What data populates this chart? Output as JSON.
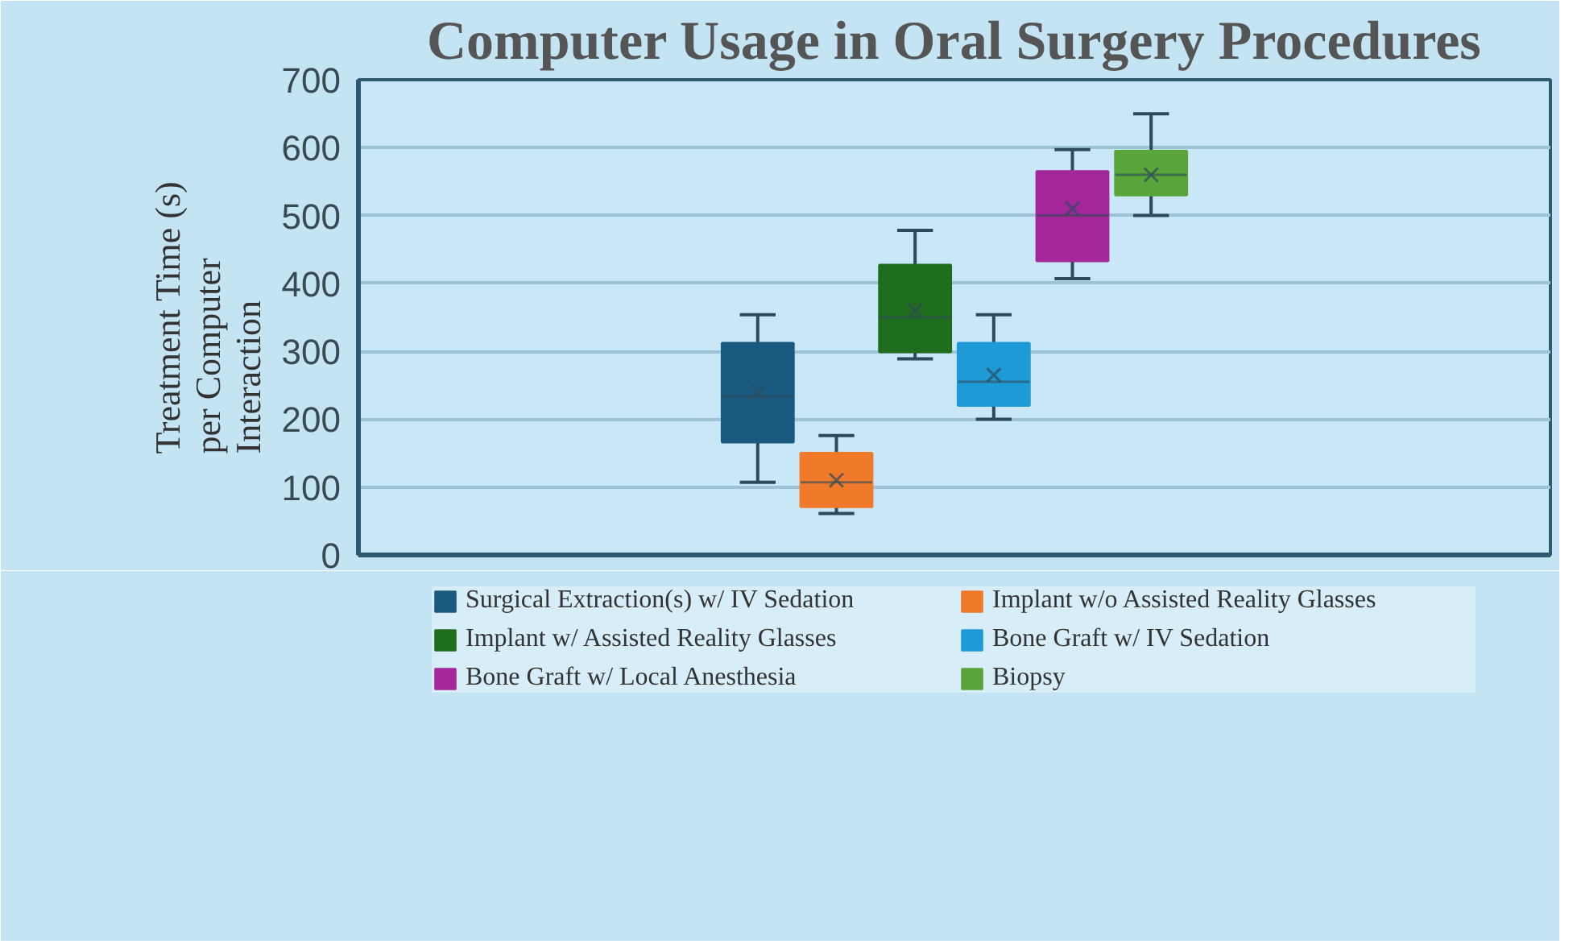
{
  "chart_data": {
    "type": "box",
    "title": "Computer Usage in Oral Surgery Procedures",
    "ylabel": "Treatment Time (s) per Computer Interaction",
    "categories": [
      null
    ],
    "ylim": [
      0,
      700
    ],
    "yticks": [
      0,
      100,
      200,
      300,
      400,
      500,
      600,
      700
    ],
    "grid": "y",
    "legend": "bottom",
    "marker": "cross",
    "series": [
      {
        "name": "Surgical Extraction(s) w/ IV Sedation",
        "color": "#1a5a80",
        "boxes": [
          {
            "low": 107,
            "q1": 166,
            "median": 233,
            "q3": 312,
            "high": 354,
            "mean": 240
          }
        ]
      },
      {
        "name": "Implant w/o Assisted Reality Glasses",
        "color": "#f07a2a",
        "boxes": [
          {
            "low": 61,
            "q1": 71,
            "median": 107,
            "q3": 150,
            "high": 176,
            "mean": 110
          }
        ]
      },
      {
        "name": "Implant w/ Assisted Reality Glasses",
        "color": "#1e6e1e",
        "boxes": [
          {
            "low": 289,
            "q1": 299,
            "median": 350,
            "q3": 427,
            "high": 478,
            "mean": 360
          }
        ]
      },
      {
        "name": "Bone Graft w/ IV Sedation",
        "color": "#1e9ad6",
        "boxes": [
          {
            "low": 200,
            "q1": 220,
            "median": 255,
            "q3": 312,
            "high": 354,
            "mean": 265
          }
        ]
      },
      {
        "name": "Bone Graft w/ Local Anesthesia",
        "color": "#a3279a",
        "boxes": [
          {
            "low": 407,
            "q1": 433,
            "median": 500,
            "q3": 565,
            "high": 597,
            "mean": 510
          }
        ]
      },
      {
        "name": "Biopsy",
        "color": "#5aa53a",
        "boxes": [
          {
            "low": 500,
            "q1": 530,
            "median": 560,
            "q3": 595,
            "high": 650,
            "mean": 560
          }
        ]
      }
    ]
  }
}
